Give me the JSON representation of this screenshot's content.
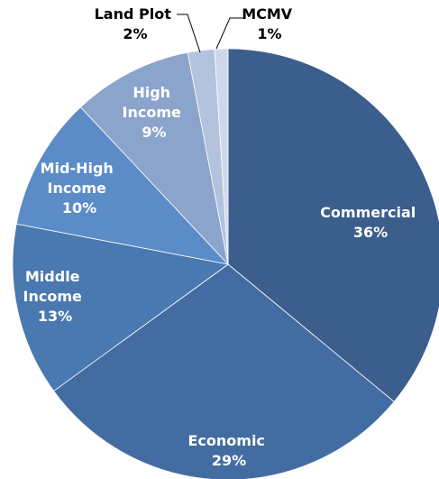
{
  "chart_data": {
    "type": "pie",
    "title": "",
    "start_angle_deg": 0,
    "direction": "clockwise",
    "slices": [
      {
        "label": "Commercial",
        "percent_label": "36%",
        "value": 36,
        "color": "#3B5E8C"
      },
      {
        "label": "Economic",
        "percent_label": "29%",
        "value": 29,
        "color": "#436DA2"
      },
      {
        "label": "Middle Income",
        "percent_label": "13%",
        "value": 13,
        "color": "#4A78B0"
      },
      {
        "label": "Mid-High Income",
        "percent_label": "10%",
        "value": 10,
        "color": "#5B8CC7"
      },
      {
        "label": "High Income",
        "percent_label": "9%",
        "value": 9,
        "color": "#8BA4CC"
      },
      {
        "label": "Land Plot",
        "percent_label": "2%",
        "value": 2,
        "color": "#B3C3DE"
      },
      {
        "label": "MCMV",
        "percent_label": "1%",
        "value": 1,
        "color": "#CDD8EA"
      }
    ],
    "legend": "none",
    "data_labels": "category-and-percent"
  }
}
